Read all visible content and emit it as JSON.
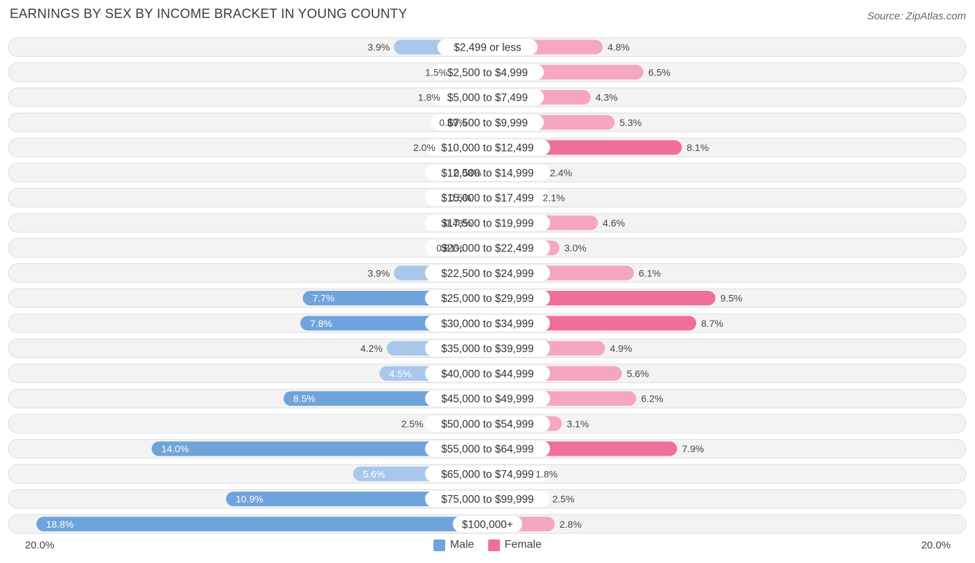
{
  "title": "EARNINGS BY SEX BY INCOME BRACKET IN YOUNG COUNTY",
  "source": "Source: ZipAtlas.com",
  "axis": {
    "left_label": "20.0%",
    "right_label": "20.0%"
  },
  "legend": {
    "male": "Male",
    "female": "Female"
  },
  "colors": {
    "male": "#6fa3dc",
    "male_light": "#a8c7eb",
    "female": "#f06f98",
    "female_light": "#f5a7c0",
    "row_bg": "#f1f1f1"
  },
  "chart_data": {
    "type": "bar",
    "orientation": "horizontal-diverging",
    "title": "EARNINGS BY SEX BY INCOME BRACKET IN YOUNG COUNTY",
    "xlim": [
      -20,
      20
    ],
    "categories": [
      "$2,499 or less",
      "$2,500 to $4,999",
      "$5,000 to $7,499",
      "$7,500 to $9,999",
      "$10,000 to $12,499",
      "$12,500 to $14,999",
      "$15,000 to $17,499",
      "$17,500 to $19,999",
      "$20,000 to $22,499",
      "$22,500 to $24,999",
      "$25,000 to $29,999",
      "$30,000 to $34,999",
      "$35,000 to $39,999",
      "$40,000 to $44,999",
      "$45,000 to $49,999",
      "$50,000 to $54,999",
      "$55,000 to $64,999",
      "$65,000 to $74,999",
      "$75,000 to $99,999",
      "$100,000+"
    ],
    "series": [
      {
        "name": "Male",
        "values": [
          3.9,
          1.5,
          1.8,
          0.69,
          2.0,
          0.08,
          0.5,
          0.48,
          0.81,
          3.9,
          7.7,
          7.8,
          4.2,
          4.5,
          8.5,
          2.5,
          14.0,
          5.6,
          10.9,
          18.8
        ],
        "labels": [
          "3.9%",
          "1.5%",
          "1.8%",
          "0.69%",
          "2.0%",
          "0.08%",
          "0.5%",
          "0.48%",
          "0.81%",
          "3.9%",
          "7.7%",
          "7.8%",
          "4.2%",
          "4.5%",
          "8.5%",
          "2.5%",
          "14.0%",
          "5.6%",
          "10.9%",
          "18.8%"
        ]
      },
      {
        "name": "Female",
        "values": [
          4.8,
          6.5,
          4.3,
          5.3,
          8.1,
          2.4,
          2.1,
          4.6,
          3.0,
          6.1,
          9.5,
          8.7,
          4.9,
          5.6,
          6.2,
          3.1,
          7.9,
          1.8,
          2.5,
          2.8
        ],
        "labels": [
          "4.8%",
          "6.5%",
          "4.3%",
          "5.3%",
          "8.1%",
          "2.4%",
          "2.1%",
          "4.6%",
          "3.0%",
          "6.1%",
          "9.5%",
          "8.7%",
          "4.9%",
          "5.6%",
          "6.2%",
          "3.1%",
          "7.9%",
          "1.8%",
          "2.5%",
          "2.8%"
        ]
      }
    ]
  }
}
